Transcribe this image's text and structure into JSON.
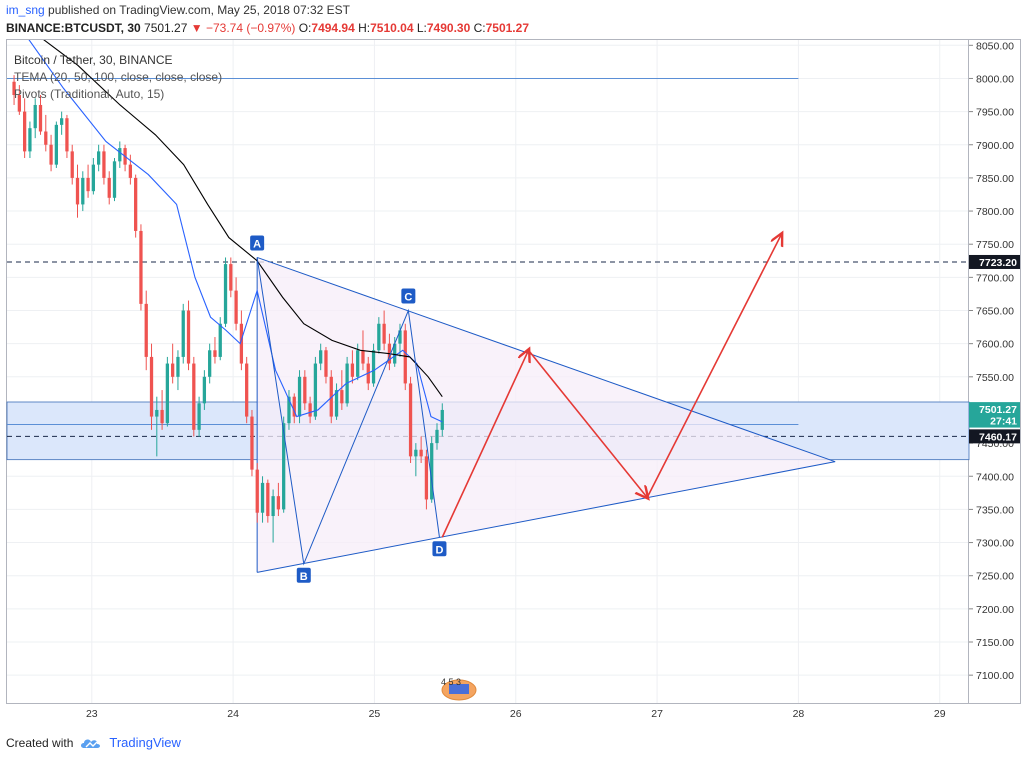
{
  "header": {
    "author": "im_sng",
    "published_text": "published on TradingView.com, May 25, 2018 07:32 EST"
  },
  "quote": {
    "symbol": "BINANCE:BTCUSDT, 30",
    "last": "7501.27",
    "change": "▼ −73.74 (−0.97%)",
    "o_label": "O:",
    "o": "7494.94",
    "h_label": "H:",
    "h": "7510.04",
    "l_label": "L:",
    "l": "7490.30",
    "c_label": "C:",
    "c": "7501.27"
  },
  "legend": {
    "symbol": "Bitcoin / Tether, 30, BINANCE",
    "tema": "TEMA (20, 50, 100, close, close, close)",
    "pivots": "Pivots (Traditional, Auto, 15)"
  },
  "footer": {
    "created_with": "Created with",
    "brand": "TradingView"
  },
  "badge": {
    "text": "4 5 3"
  },
  "colors": {
    "up": "#26a69a",
    "down": "#ef5350",
    "tema_fast": "#2962ff",
    "tema_slow": "#000000",
    "pattern": "#1e5bc6",
    "arrow": "#e53935",
    "band_fill": "#dbe7fb",
    "triangle_fill": "#f7eef8"
  },
  "chart_data": {
    "type": "candlestick",
    "x_ticks": [
      "23",
      "24",
      "25",
      "26",
      "27",
      "28",
      "29"
    ],
    "y_ticks": [
      "8050.00",
      "8000.00",
      "7950.00",
      "7900.00",
      "7850.00",
      "7800.00",
      "7750.00",
      "7700.00",
      "7650.00",
      "7600.00",
      "7550.00",
      "7500.00",
      "7450.00",
      "7400.00",
      "7350.00",
      "7300.00",
      "7250.00",
      "7200.00",
      "7150.00",
      "7100.00"
    ],
    "ylim": [
      7058,
      8058
    ],
    "xlim_days": [
      22.4,
      29.2
    ],
    "price_labels": [
      {
        "text": "7723.20",
        "value": 7723.2,
        "style": "dark"
      },
      {
        "text": "7501.27",
        "value": 7501.27,
        "style": "green"
      },
      {
        "text": "27:41",
        "value": 7484,
        "style": "green"
      },
      {
        "text": "7460.17",
        "value": 7460.17,
        "style": "dark"
      }
    ],
    "horizontal_lines": [
      {
        "value": 8000,
        "style": "solid",
        "x_from": 22.4,
        "x_to": 28.0
      },
      {
        "value": 7723.2,
        "style": "dashed"
      },
      {
        "value": 7460.17,
        "style": "dashed"
      },
      {
        "value": 7478,
        "style": "solid",
        "x_from": 22.4,
        "x_to": 28.0
      }
    ],
    "band": {
      "from": 7425,
      "to": 7512
    },
    "pattern_points": [
      {
        "label": "A",
        "day": 24.17,
        "price": 7730
      },
      {
        "label": "B",
        "day": 24.5,
        "price": 7268
      },
      {
        "label": "C",
        "day": 25.24,
        "price": 7650
      },
      {
        "label": "D",
        "day": 25.46,
        "price": 7308
      }
    ],
    "triangle": {
      "upper": [
        [
          24.17,
          7730
        ],
        [
          28.26,
          7422
        ]
      ],
      "lower": [
        [
          24.17,
          7255
        ],
        [
          28.26,
          7422
        ]
      ]
    },
    "arrows": [
      [
        [
          25.48,
          7308
        ],
        [
          26.09,
          7590
        ]
      ],
      [
        [
          26.09,
          7590
        ],
        [
          26.93,
          7368
        ]
      ],
      [
        [
          26.93,
          7368
        ],
        [
          27.88,
          7765
        ]
      ]
    ],
    "ohlc": [
      [
        7995,
        8005,
        7960,
        7975
      ],
      [
        7975,
        7990,
        7945,
        7950
      ],
      [
        7950,
        7970,
        7880,
        7890
      ],
      [
        7890,
        7935,
        7880,
        7925
      ],
      [
        7925,
        7970,
        7910,
        7960
      ],
      [
        7960,
        7975,
        7915,
        7920
      ],
      [
        7920,
        7945,
        7890,
        7900
      ],
      [
        7900,
        7915,
        7860,
        7870
      ],
      [
        7870,
        7935,
        7865,
        7930
      ],
      [
        7930,
        7950,
        7915,
        7940
      ],
      [
        7940,
        7945,
        7880,
        7890
      ],
      [
        7890,
        7900,
        7840,
        7850
      ],
      [
        7850,
        7870,
        7790,
        7810
      ],
      [
        7810,
        7860,
        7800,
        7850
      ],
      [
        7850,
        7870,
        7820,
        7830
      ],
      [
        7830,
        7880,
        7825,
        7870
      ],
      [
        7870,
        7900,
        7860,
        7890
      ],
      [
        7890,
        7900,
        7840,
        7850
      ],
      [
        7850,
        7860,
        7810,
        7820
      ],
      [
        7820,
        7880,
        7815,
        7875
      ],
      [
        7875,
        7905,
        7865,
        7895
      ],
      [
        7895,
        7900,
        7860,
        7870
      ],
      [
        7870,
        7885,
        7840,
        7850
      ],
      [
        7850,
        7855,
        7760,
        7770
      ],
      [
        7770,
        7780,
        7650,
        7660
      ],
      [
        7660,
        7680,
        7560,
        7580
      ],
      [
        7580,
        7600,
        7470,
        7490
      ],
      [
        7490,
        7520,
        7430,
        7500
      ],
      [
        7500,
        7530,
        7470,
        7480
      ],
      [
        7480,
        7580,
        7475,
        7570
      ],
      [
        7570,
        7600,
        7540,
        7550
      ],
      [
        7550,
        7590,
        7530,
        7580
      ],
      [
        7580,
        7660,
        7570,
        7650
      ],
      [
        7650,
        7665,
        7560,
        7570
      ],
      [
        7570,
        7580,
        7460,
        7470
      ],
      [
        7470,
        7520,
        7460,
        7510
      ],
      [
        7510,
        7560,
        7500,
        7550
      ],
      [
        7550,
        7600,
        7540,
        7590
      ],
      [
        7590,
        7610,
        7570,
        7580
      ],
      [
        7580,
        7640,
        7575,
        7630
      ],
      [
        7630,
        7730,
        7625,
        7720
      ],
      [
        7720,
        7730,
        7670,
        7680
      ],
      [
        7680,
        7700,
        7620,
        7630
      ],
      [
        7630,
        7650,
        7560,
        7570
      ],
      [
        7570,
        7580,
        7480,
        7490
      ],
      [
        7490,
        7500,
        7400,
        7410
      ],
      [
        7410,
        7420,
        7330,
        7345
      ],
      [
        7345,
        7400,
        7330,
        7390
      ],
      [
        7390,
        7395,
        7330,
        7340
      ],
      [
        7340,
        7380,
        7300,
        7370
      ],
      [
        7370,
        7390,
        7340,
        7350
      ],
      [
        7350,
        7490,
        7345,
        7480
      ],
      [
        7480,
        7530,
        7470,
        7520
      ],
      [
        7520,
        7525,
        7480,
        7490
      ],
      [
        7490,
        7560,
        7480,
        7550
      ],
      [
        7550,
        7560,
        7500,
        7510
      ],
      [
        7510,
        7520,
        7480,
        7490
      ],
      [
        7490,
        7580,
        7485,
        7570
      ],
      [
        7570,
        7600,
        7560,
        7590
      ],
      [
        7590,
        7595,
        7540,
        7550
      ],
      [
        7550,
        7560,
        7480,
        7490
      ],
      [
        7490,
        7540,
        7485,
        7530
      ],
      [
        7530,
        7560,
        7500,
        7510
      ],
      [
        7510,
        7580,
        7505,
        7570
      ],
      [
        7570,
        7590,
        7540,
        7550
      ],
      [
        7550,
        7600,
        7545,
        7590
      ],
      [
        7590,
        7620,
        7560,
        7570
      ],
      [
        7570,
        7580,
        7530,
        7540
      ],
      [
        7540,
        7600,
        7535,
        7590
      ],
      [
        7590,
        7640,
        7585,
        7630
      ],
      [
        7630,
        7650,
        7590,
        7600
      ],
      [
        7600,
        7615,
        7560,
        7570
      ],
      [
        7570,
        7610,
        7565,
        7600
      ],
      [
        7600,
        7630,
        7580,
        7620
      ],
      [
        7620,
        7630,
        7530,
        7540
      ],
      [
        7540,
        7550,
        7420,
        7430
      ],
      [
        7430,
        7450,
        7400,
        7440
      ],
      [
        7440,
        7460,
        7420,
        7430
      ],
      [
        7430,
        7440,
        7350,
        7365
      ],
      [
        7365,
        7460,
        7360,
        7450
      ],
      [
        7450,
        7480,
        7440,
        7470
      ],
      [
        7470,
        7510,
        7460,
        7500
      ]
    ],
    "tema_fast": [
      [
        22.55,
        8060
      ],
      [
        22.8,
        7985
      ],
      [
        23.1,
        7905
      ],
      [
        23.4,
        7855
      ],
      [
        23.6,
        7810
      ],
      [
        23.73,
        7700
      ],
      [
        23.84,
        7640
      ],
      [
        23.95,
        7620
      ],
      [
        24.05,
        7600
      ],
      [
        24.17,
        7680
      ],
      [
        24.3,
        7560
      ],
      [
        24.45,
        7490
      ],
      [
        24.6,
        7500
      ],
      [
        24.8,
        7540
      ],
      [
        25.0,
        7560
      ],
      [
        25.2,
        7590
      ],
      [
        25.3,
        7570
      ],
      [
        25.4,
        7490
      ],
      [
        25.48,
        7482
      ]
    ],
    "tema_slow": [
      [
        22.65,
        8060
      ],
      [
        22.9,
        8020
      ],
      [
        23.2,
        7960
      ],
      [
        23.45,
        7915
      ],
      [
        23.65,
        7870
      ],
      [
        23.82,
        7810
      ],
      [
        23.97,
        7760
      ],
      [
        24.17,
        7725
      ],
      [
        24.35,
        7670
      ],
      [
        24.5,
        7630
      ],
      [
        24.7,
        7605
      ],
      [
        24.9,
        7590
      ],
      [
        25.1,
        7585
      ],
      [
        25.25,
        7580
      ],
      [
        25.38,
        7550
      ],
      [
        25.48,
        7520
      ]
    ]
  }
}
